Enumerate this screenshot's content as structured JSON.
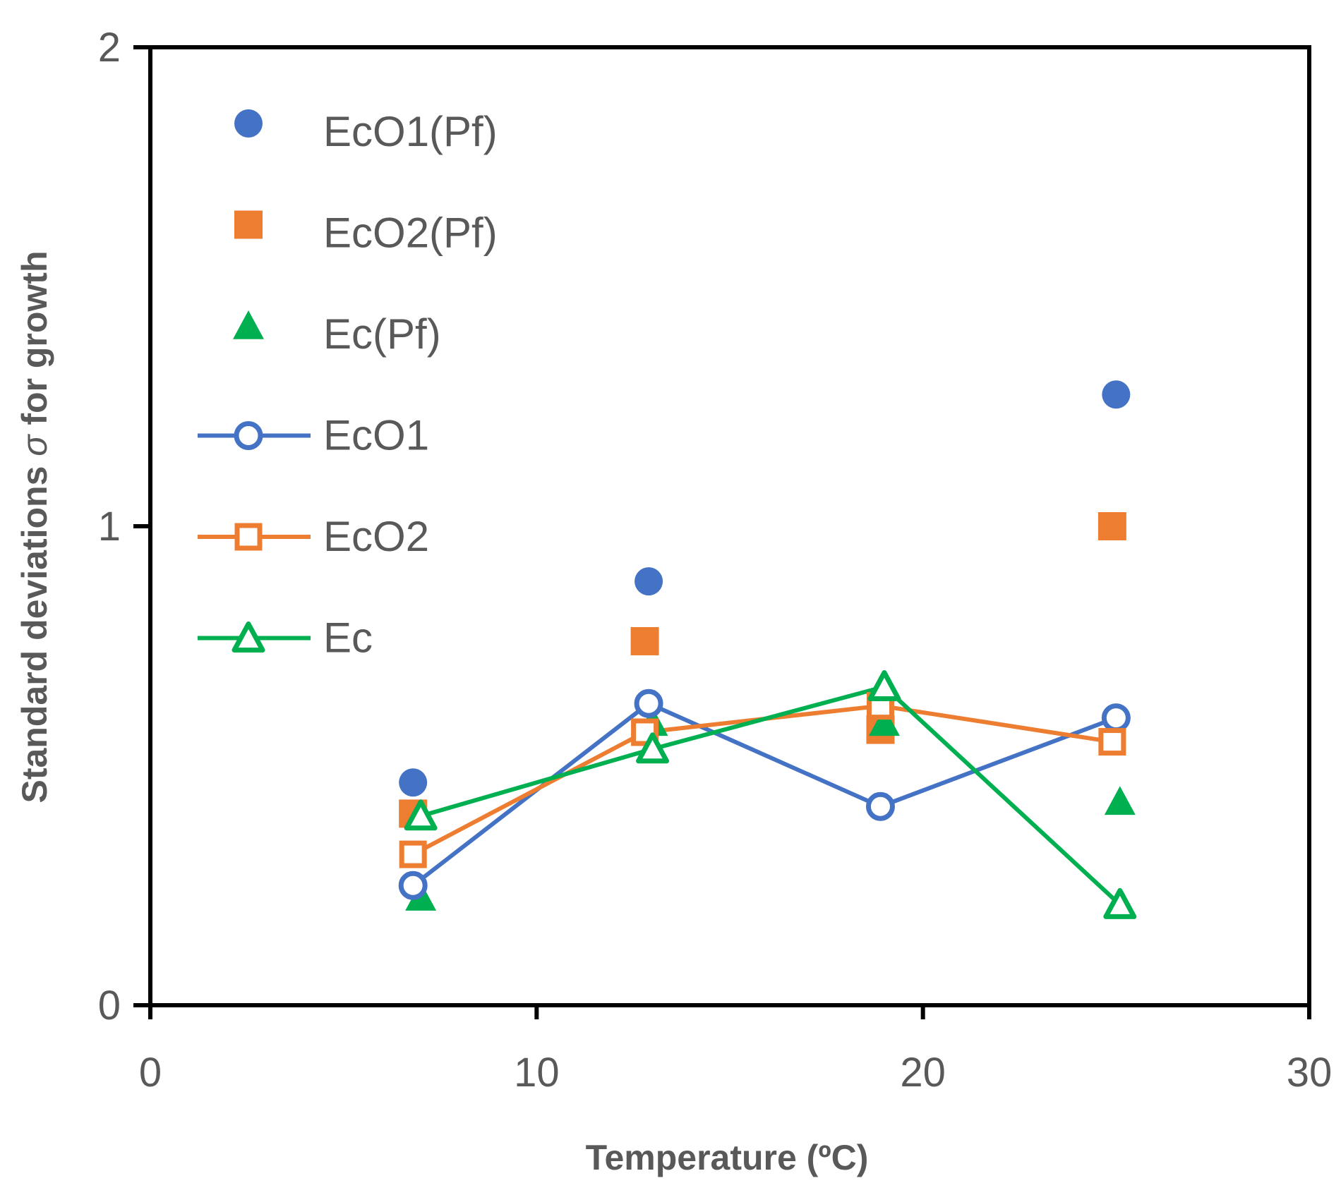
{
  "chart_data": {
    "type": "scatter",
    "xlabel": "Temperature (ºC)",
    "ylabel_parts": [
      "Standard deviations ",
      "σ",
      " for growth"
    ],
    "xlim": [
      0,
      30
    ],
    "ylim": [
      0,
      2
    ],
    "x_ticks": [
      0,
      10,
      20,
      30
    ],
    "x_tick_labels": [
      "0",
      "10",
      "20",
      "30"
    ],
    "y_ticks": [
      0,
      1,
      2
    ],
    "y_tick_labels": [
      "0",
      "1",
      "2"
    ],
    "grid": false,
    "legend_position": "top-left",
    "series": [
      {
        "name": "EcO1(Pf)",
        "marker": "circle",
        "filled": true,
        "line": false,
        "color": "#4472C4",
        "x": [
          6.8,
          12.9,
          18.9,
          25.0
        ],
        "y": [
          0.465,
          0.885,
          0.6,
          1.275
        ]
      },
      {
        "name": "EcO2(Pf)",
        "marker": "square",
        "filled": true,
        "line": false,
        "color": "#ED7D31",
        "x": [
          6.8,
          12.8,
          18.9,
          24.9
        ],
        "y": [
          0.4,
          0.76,
          0.575,
          1.0
        ]
      },
      {
        "name": "Ec(Pf)",
        "marker": "triangle",
        "filled": true,
        "line": false,
        "color": "#00B050",
        "x": [
          7.0,
          13.0,
          19.0,
          25.1
        ],
        "y": [
          0.225,
          0.59,
          0.59,
          0.425
        ]
      },
      {
        "name": "EcO1",
        "marker": "circle",
        "filled": false,
        "line": true,
        "color": "#4472C4",
        "x": [
          6.8,
          12.9,
          18.9,
          25.0
        ],
        "y": [
          0.25,
          0.63,
          0.415,
          0.6
        ]
      },
      {
        "name": "EcO2",
        "marker": "square",
        "filled": false,
        "line": true,
        "color": "#ED7D31",
        "x": [
          6.8,
          12.8,
          18.9,
          24.9
        ],
        "y": [
          0.315,
          0.57,
          0.625,
          0.55
        ]
      },
      {
        "name": "Ec",
        "marker": "triangle",
        "filled": false,
        "line": true,
        "color": "#00B050",
        "x": [
          7.0,
          13.0,
          19.0,
          25.1
        ],
        "y": [
          0.395,
          0.535,
          0.665,
          0.21
        ]
      }
    ]
  }
}
